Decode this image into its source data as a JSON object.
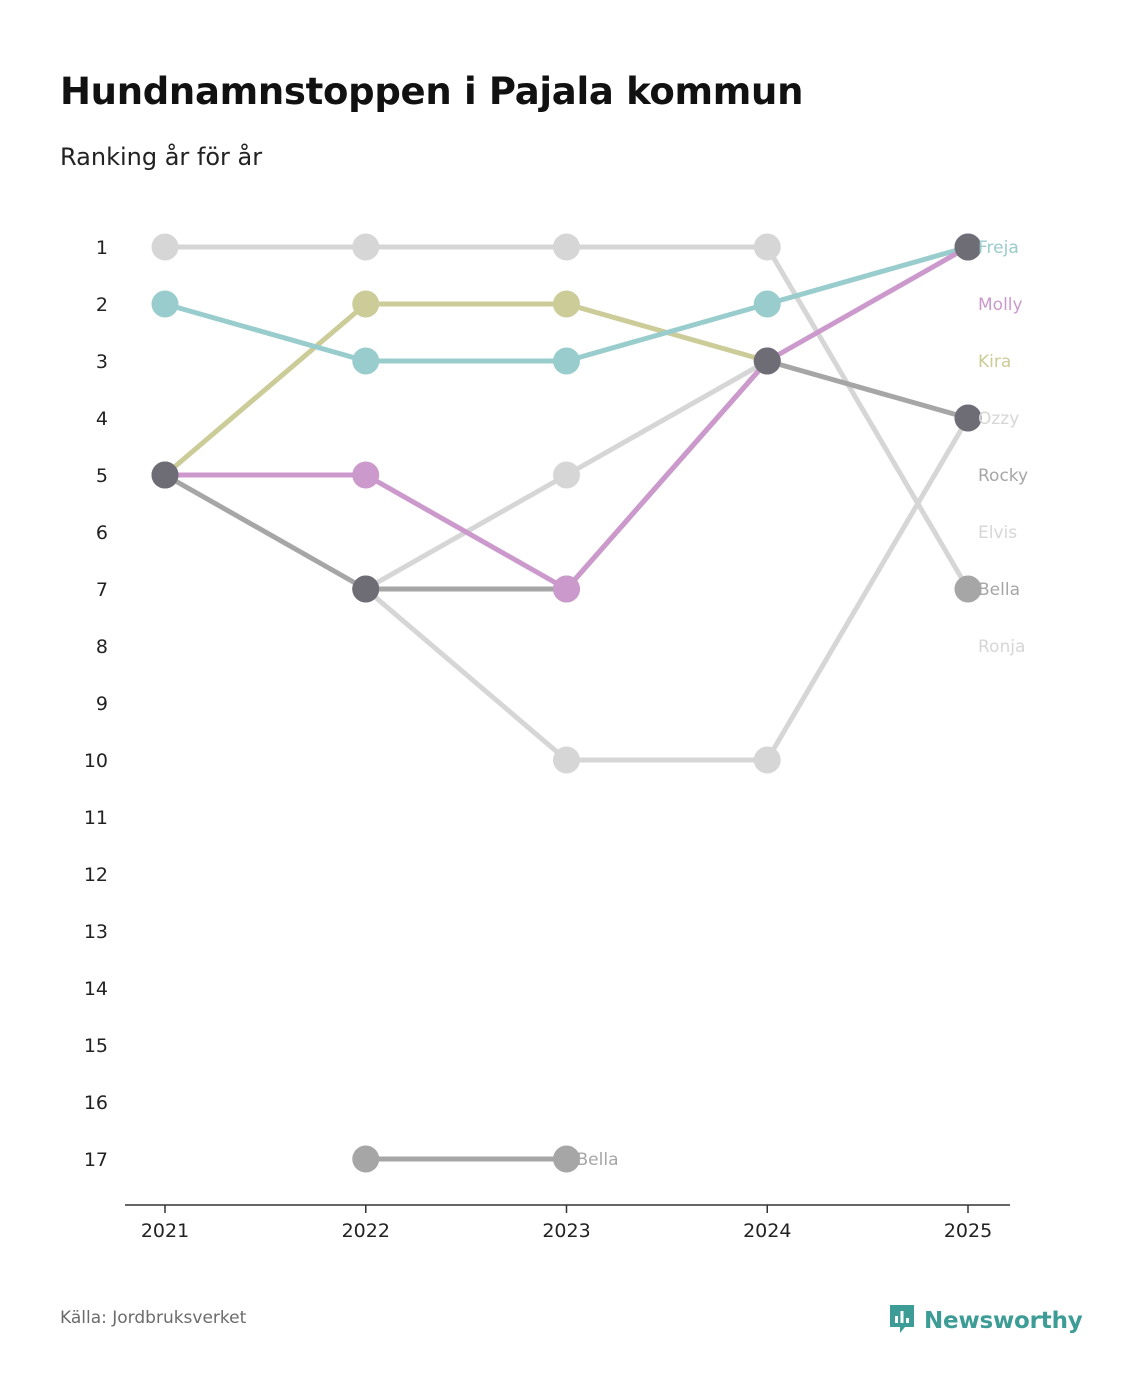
{
  "title": "Hundnamnstoppen i Pajala kommun",
  "subtitle": "Ranking år för år",
  "source": "Källa: Jordbruksverket",
  "brand": {
    "name": "Newsworthy",
    "icon": "newsworthy-logo-icon",
    "color": "#3d9c95"
  },
  "chart_data": {
    "type": "line",
    "chart_kind": "bump",
    "x": [
      "2021",
      "2022",
      "2023",
      "2024",
      "2025"
    ],
    "y_ticks": [
      "1",
      "2",
      "3",
      "4",
      "5",
      "6",
      "7",
      "8",
      "9",
      "10",
      "11",
      "12",
      "13",
      "14",
      "15",
      "16",
      "17"
    ],
    "ylim": [
      1,
      17
    ],
    "y_inverted": true,
    "xlabel": "",
    "ylabel": "",
    "series": [
      {
        "name": "Ronja",
        "color": "#d6d6d6",
        "values": [
          1,
          1,
          1,
          1,
          7
        ],
        "label_rank": 8
      },
      {
        "name": "Elvis",
        "color": "#d6d6d6",
        "values": [
          null,
          7,
          10,
          10,
          4
        ],
        "label_rank": 6
      },
      {
        "name": "Ozzy",
        "color": "#d6d6d6",
        "values": [
          null,
          7,
          5,
          3,
          null
        ],
        "label_rank": 4
      },
      {
        "name": "Kira",
        "color": "#cccc99",
        "values": [
          5,
          2,
          2,
          3,
          null
        ],
        "label_rank": 3
      },
      {
        "name": "Freja",
        "color": "#99cccc",
        "values": [
          2,
          3,
          3,
          2,
          1
        ],
        "label_rank": 1
      },
      {
        "name": "Bella",
        "color": "#a6a6a6",
        "values": [
          null,
          17,
          17,
          null,
          null
        ],
        "label_rank": 17,
        "label_year": "2023"
      },
      {
        "name": "Rocky",
        "color": "#a6a6a6",
        "values": [
          5,
          7,
          7,
          3,
          4
        ],
        "label_rank": 5
      },
      {
        "name": "Molly",
        "color": "#cc99cc",
        "values": [
          5,
          5,
          7,
          3,
          1
        ],
        "label_rank": 2
      },
      {
        "name": "Bella",
        "color": "#a6a6a6",
        "values": [
          null,
          null,
          null,
          null,
          7
        ],
        "label_rank": 7
      }
    ],
    "highlight_points": [
      {
        "x": "2021",
        "y": 5,
        "color": "#6e6d76"
      },
      {
        "x": "2022",
        "y": 7,
        "color": "#6e6d76"
      },
      {
        "x": "2024",
        "y": 3,
        "color": "#6e6d76"
      },
      {
        "x": "2025",
        "y": 1,
        "color": "#6e6d76"
      },
      {
        "x": "2025",
        "y": 4,
        "color": "#6e6d76"
      }
    ]
  }
}
